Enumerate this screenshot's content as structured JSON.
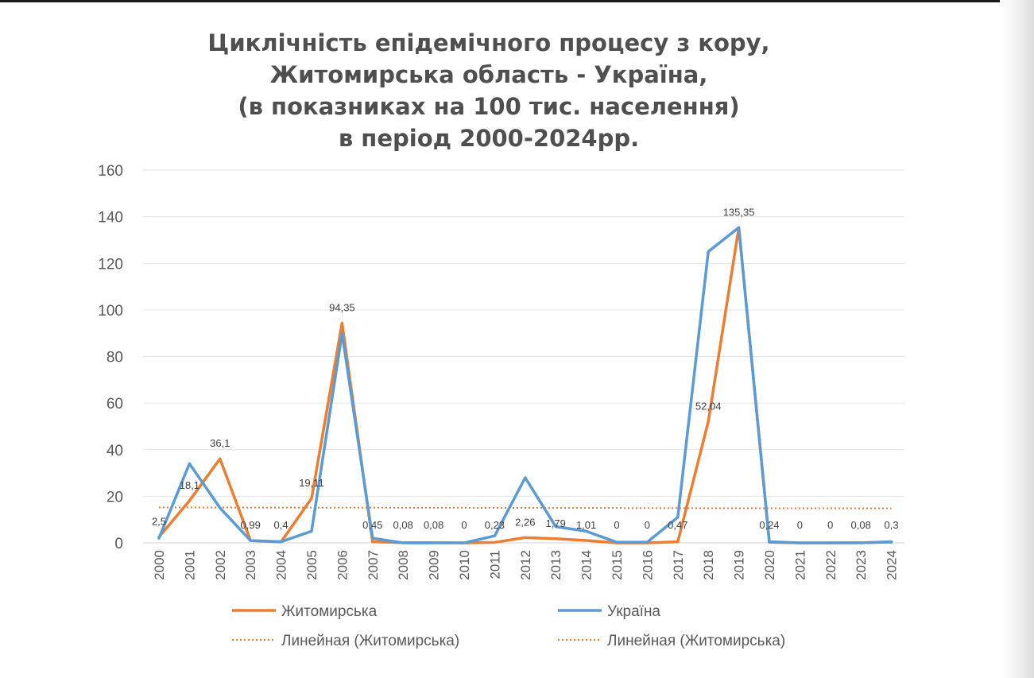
{
  "chart_data": {
    "type": "line",
    "title": [
      "Циклічність епідемічного процесу з кору,",
      "Житомирська область - Україна,",
      "(в показниках на 100 тис. населення)",
      "в період 2000-2024рр."
    ],
    "xlabel": "",
    "ylabel": "",
    "ylim": [
      0,
      160
    ],
    "yticks": [
      "0",
      "20",
      "40",
      "60",
      "80",
      "100",
      "120",
      "140",
      "160"
    ],
    "grid": true,
    "legend_position": "bottom",
    "categories": [
      "2000",
      "2001",
      "2002",
      "2003",
      "2004",
      "2005",
      "2006",
      "2007",
      "2008",
      "2009",
      "2010",
      "2011",
      "2012",
      "2013",
      "2014",
      "2015",
      "2016",
      "2017",
      "2018",
      "2019",
      "2020",
      "2021",
      "2022",
      "2023",
      "2024"
    ],
    "series": [
      {
        "name": "Житомирська",
        "color": "#ED7D31",
        "values": [
          2.5,
          18.1,
          36.1,
          0.99,
          0.4,
          19.11,
          94.35,
          0.45,
          0.08,
          0.08,
          0,
          0.23,
          2.26,
          1.79,
          1.01,
          0,
          0,
          0.47,
          52.04,
          135.35,
          0.24,
          0,
          0,
          0.08,
          0.3
        ],
        "data_labels": [
          "2,5",
          "18,1",
          "36,1",
          "0,99",
          "0,4",
          "19,11",
          "94,35",
          "0,45",
          "0,08",
          "0,08",
          "0",
          "0,23",
          "2,26",
          "1,79",
          "1,01",
          "0",
          "0",
          "0,47",
          "52,04",
          "135,35",
          "0,24",
          "0",
          "0",
          "0,08",
          "0,3"
        ]
      },
      {
        "name": "Україна",
        "color": "#5B9BD5",
        "values": [
          2,
          34,
          15,
          1,
          0.5,
          5,
          90,
          2,
          0,
          0,
          0,
          3,
          28,
          7,
          5,
          0.3,
          0.3,
          11,
          125,
          135.35,
          0.5,
          0,
          0,
          0,
          0.5
        ]
      },
      {
        "name": "Линейная (Житомирська)",
        "color": "#ED7D31",
        "style": "dotted",
        "trend_start": 15.2,
        "trend_end": 14.8
      }
    ],
    "legend": [
      {
        "label": "Житомирська",
        "style": "solid",
        "color": "#ED7D31"
      },
      {
        "label": "Україна",
        "style": "solid",
        "color": "#5B9BD5"
      },
      {
        "label": "Линейная (Житомирська)",
        "style": "dotted",
        "color": "#ED7D31"
      },
      {
        "label": "Линейная (Житомирська)",
        "style": "dotted",
        "color": "#ED7D31"
      }
    ]
  }
}
